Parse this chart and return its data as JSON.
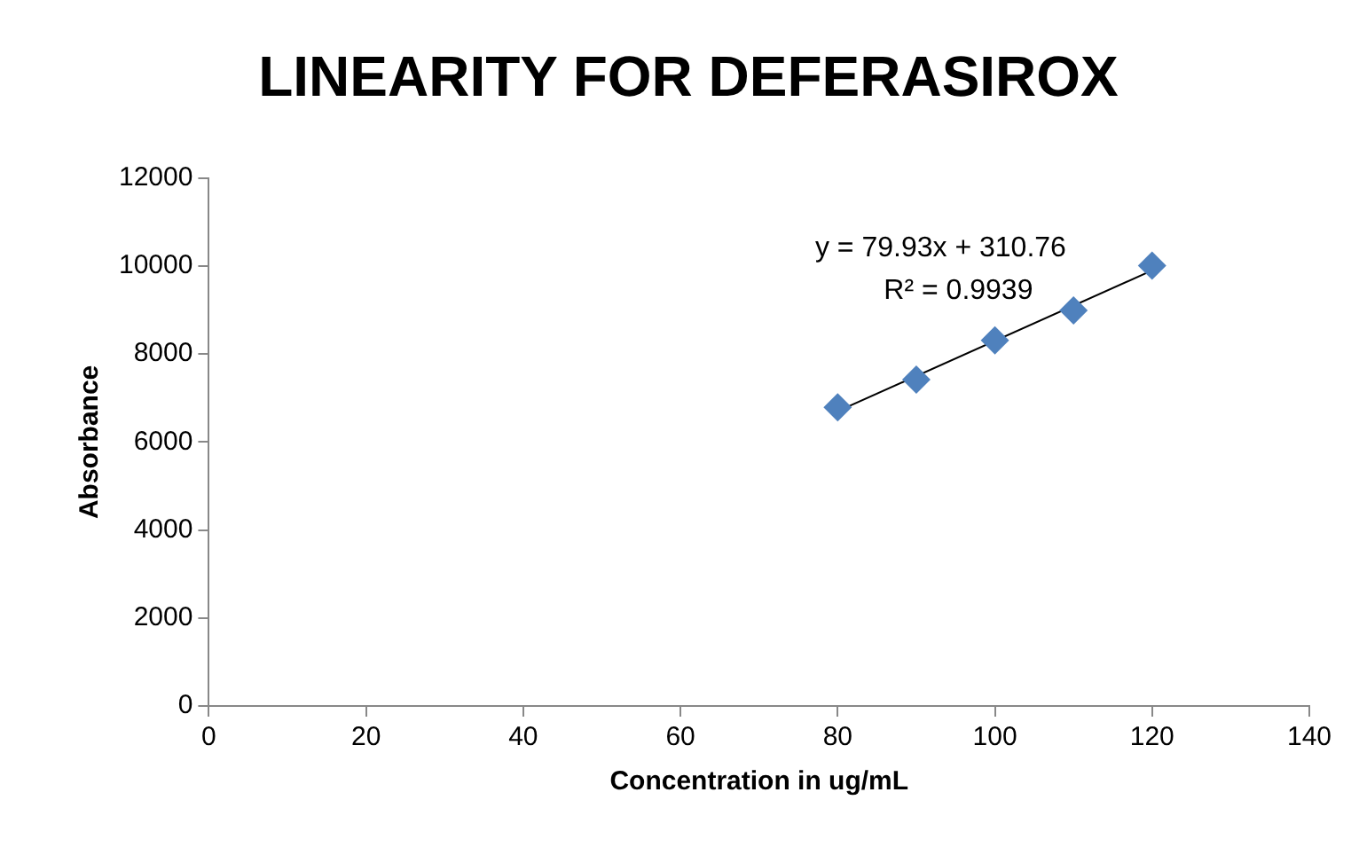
{
  "chart_data": {
    "type": "scatter",
    "title": "LINEARITY FOR DEFERASIROX",
    "xlabel": "Concentration in ug/mL",
    "ylabel": "Absorbance",
    "annotations": [
      "y = 79.93x + 310.76",
      "R² = 0.9939"
    ],
    "series": [
      {
        "type": "scatter",
        "color": "#4f81bd",
        "marker": "diamond",
        "x": [
          80,
          90,
          100,
          110,
          120
        ],
        "values": [
          6790,
          7420,
          8310,
          8990,
          10010
        ]
      },
      {
        "type": "line",
        "color": "#000000",
        "marker": "none",
        "x": [
          80,
          120
        ],
        "values": [
          6700,
          9900
        ]
      }
    ],
    "xlim": [
      0,
      140
    ],
    "xticks": [
      0,
      20,
      40,
      60,
      80,
      100,
      120,
      140
    ],
    "ylim": [
      0,
      12000
    ],
    "yticks": [
      0,
      2000,
      4000,
      6000,
      8000,
      10000,
      12000
    ],
    "grid": false,
    "legend": false
  }
}
